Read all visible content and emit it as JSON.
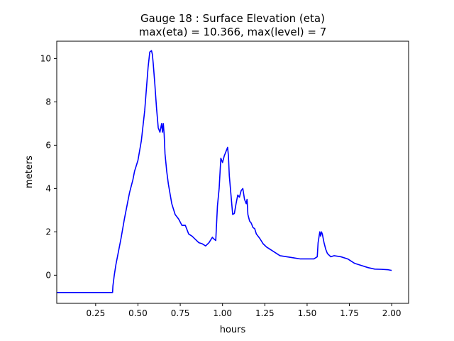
{
  "chart_data": {
    "type": "line",
    "title_line1": "Gauge 18 : Surface Elevation (eta)",
    "title_line2": "max(eta) =  10.366,    max(level) = 7",
    "xlabel": "hours",
    "ylabel": "meters",
    "xlim": [
      0.02,
      2.1
    ],
    "ylim": [
      -1.3,
      10.8
    ],
    "xticks": [
      0.25,
      0.5,
      0.75,
      1.0,
      1.25,
      1.5,
      1.75,
      2.0
    ],
    "xtick_labels": [
      "0.25",
      "0.50",
      "0.75",
      "1.00",
      "1.25",
      "1.50",
      "1.75",
      "2.00"
    ],
    "yticks": [
      0,
      2,
      4,
      6,
      8,
      10
    ],
    "ytick_labels": [
      "0",
      "2",
      "4",
      "6",
      "8",
      "10"
    ],
    "grid": false,
    "series": [
      {
        "color": "#0000ff",
        "x": [
          0.02,
          0.35,
          0.352,
          0.36,
          0.37,
          0.38,
          0.4,
          0.42,
          0.44,
          0.45,
          0.46,
          0.47,
          0.48,
          0.5,
          0.52,
          0.54,
          0.55,
          0.56,
          0.57,
          0.58,
          0.585,
          0.59,
          0.6,
          0.61,
          0.62,
          0.63,
          0.64,
          0.645,
          0.65,
          0.655,
          0.66,
          0.67,
          0.68,
          0.7,
          0.72,
          0.74,
          0.76,
          0.78,
          0.8,
          0.82,
          0.84,
          0.86,
          0.88,
          0.9,
          0.92,
          0.94,
          0.945,
          0.96,
          0.97,
          0.98,
          0.99,
          1.0,
          1.01,
          1.02,
          1.03,
          1.035,
          1.04,
          1.05,
          1.06,
          1.07,
          1.08,
          1.09,
          1.1,
          1.11,
          1.12,
          1.13,
          1.14,
          1.145,
          1.15,
          1.16,
          1.17,
          1.18,
          1.19,
          1.2,
          1.22,
          1.24,
          1.26,
          1.3,
          1.34,
          1.38,
          1.42,
          1.46,
          1.5,
          1.54,
          1.56,
          1.565,
          1.575,
          1.58,
          1.585,
          1.59,
          1.6,
          1.61,
          1.62,
          1.64,
          1.66,
          1.7,
          1.74,
          1.78,
          1.82,
          1.86,
          1.9,
          1.94,
          1.98,
          2.0
        ],
        "y": [
          -0.8,
          -0.8,
          -0.5,
          0.0,
          0.5,
          0.9,
          1.7,
          2.6,
          3.4,
          3.8,
          4.1,
          4.4,
          4.8,
          5.3,
          6.2,
          7.6,
          8.6,
          9.6,
          10.3,
          10.366,
          10.2,
          9.8,
          8.8,
          7.7,
          6.8,
          6.6,
          7.0,
          6.6,
          7.0,
          6.5,
          5.6,
          4.8,
          4.2,
          3.3,
          2.8,
          2.6,
          2.3,
          2.3,
          1.9,
          1.8,
          1.65,
          1.5,
          1.45,
          1.35,
          1.5,
          1.75,
          1.7,
          1.6,
          3.2,
          4.0,
          5.4,
          5.2,
          5.5,
          5.7,
          5.9,
          5.5,
          4.6,
          3.7,
          2.8,
          2.85,
          3.3,
          3.7,
          3.6,
          3.9,
          4.0,
          3.5,
          3.3,
          3.5,
          2.8,
          2.5,
          2.4,
          2.2,
          2.15,
          1.9,
          1.7,
          1.45,
          1.3,
          1.1,
          0.9,
          0.85,
          0.8,
          0.75,
          0.75,
          0.75,
          0.85,
          1.5,
          2.0,
          1.8,
          2.0,
          1.9,
          1.5,
          1.2,
          1.0,
          0.85,
          0.9,
          0.85,
          0.75,
          0.55,
          0.45,
          0.35,
          0.28,
          0.27,
          0.25,
          0.22
        ]
      }
    ]
  }
}
